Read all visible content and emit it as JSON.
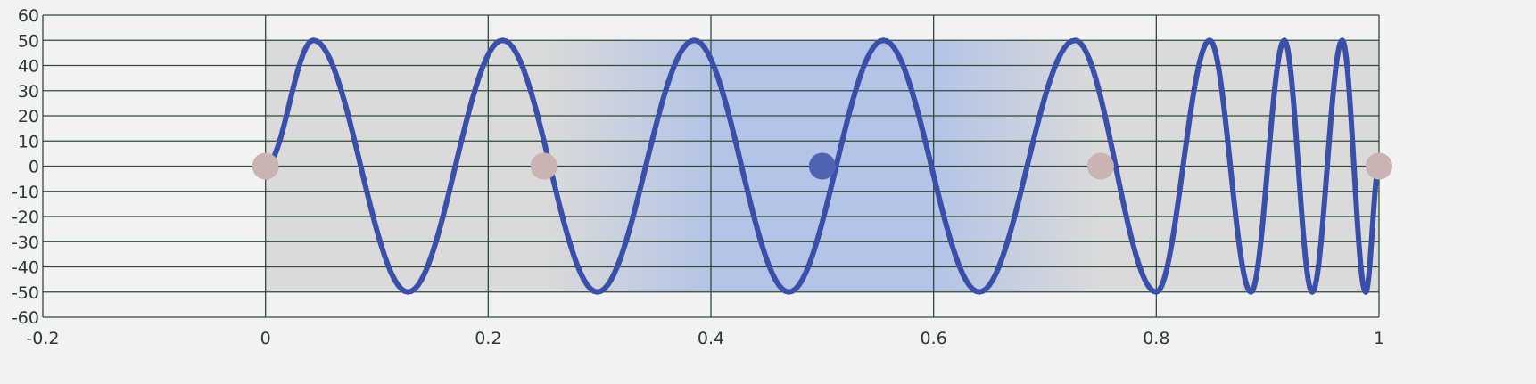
{
  "chart_data": {
    "type": "line",
    "title": "",
    "xlabel": "",
    "ylabel": "",
    "xlim": [
      -0.2,
      1
    ],
    "ylim": [
      -60,
      60
    ],
    "grid": true,
    "x_ticks": [
      -0.2,
      0,
      0.2,
      0.4,
      0.6,
      0.8,
      1
    ],
    "y_ticks": [
      60,
      50,
      40,
      30,
      20,
      10,
      0,
      -10,
      -20,
      -30,
      -40,
      -50,
      -60
    ],
    "x_tick_labels": [
      "-0.2",
      "0",
      "0.2",
      "0.4",
      "0.6",
      "0.8",
      "1"
    ],
    "y_tick_labels": [
      "60",
      "50",
      "40",
      "30",
      "20",
      "10",
      "0",
      "-10",
      "-20",
      "-30",
      "-40",
      "-50",
      "-60"
    ],
    "band": {
      "x_range": [
        0,
        1
      ],
      "y_range": [
        -50,
        50
      ],
      "gray": "#dadada",
      "blue": "#b4c4e6"
    },
    "series": [
      {
        "color": "#3a4fa8",
        "x": [
          0,
          0.043,
          0.128,
          0.213,
          0.298,
          0.385,
          0.47,
          0.555,
          0.641,
          0.727,
          0.8,
          0.848,
          0.885,
          0.915,
          0.94,
          0.967,
          0.988,
          1
        ],
        "y": [
          0,
          50,
          -50,
          50,
          -50,
          50,
          -50,
          50,
          -50,
          50,
          -50,
          50,
          -50,
          50,
          -50,
          50,
          -50,
          0
        ]
      }
    ],
    "control_points": [
      {
        "x": 0,
        "y": 0,
        "color": "#c9b3b3"
      },
      {
        "x": 0.25,
        "y": 0,
        "color": "#c9b3b3"
      },
      {
        "x": 0.5,
        "y": 0,
        "color": "#4f63b2"
      },
      {
        "x": 0.75,
        "y": 0,
        "color": "#c9b3b3"
      },
      {
        "x": 1,
        "y": 0,
        "color": "#c9b3b3"
      }
    ]
  }
}
